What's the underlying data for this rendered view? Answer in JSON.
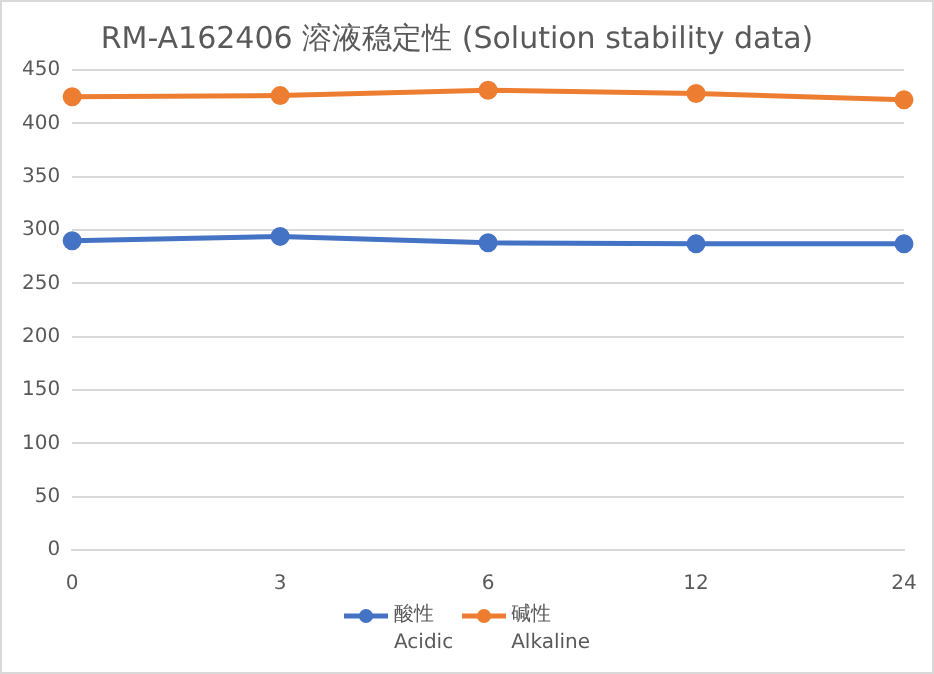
{
  "chart_data": {
    "type": "line",
    "title": "RM-A162406 溶液稳定性 (Solution stability data)",
    "categories": [
      "0",
      "3",
      "6",
      "12",
      "24"
    ],
    "series": [
      {
        "name": "酸性\nAcidic",
        "color": "#4472c4",
        "values": [
          290,
          294,
          288,
          287,
          287
        ]
      },
      {
        "name": "碱性\nAlkaline",
        "color": "#ed7d31",
        "values": [
          425,
          426,
          431,
          428,
          422
        ]
      }
    ],
    "ylim": [
      0,
      450
    ],
    "yticks": [
      0,
      50,
      100,
      150,
      200,
      250,
      300,
      350,
      400,
      450
    ],
    "grid": "y",
    "legend": "bottom",
    "marker": "circle",
    "line_style": "solid"
  }
}
